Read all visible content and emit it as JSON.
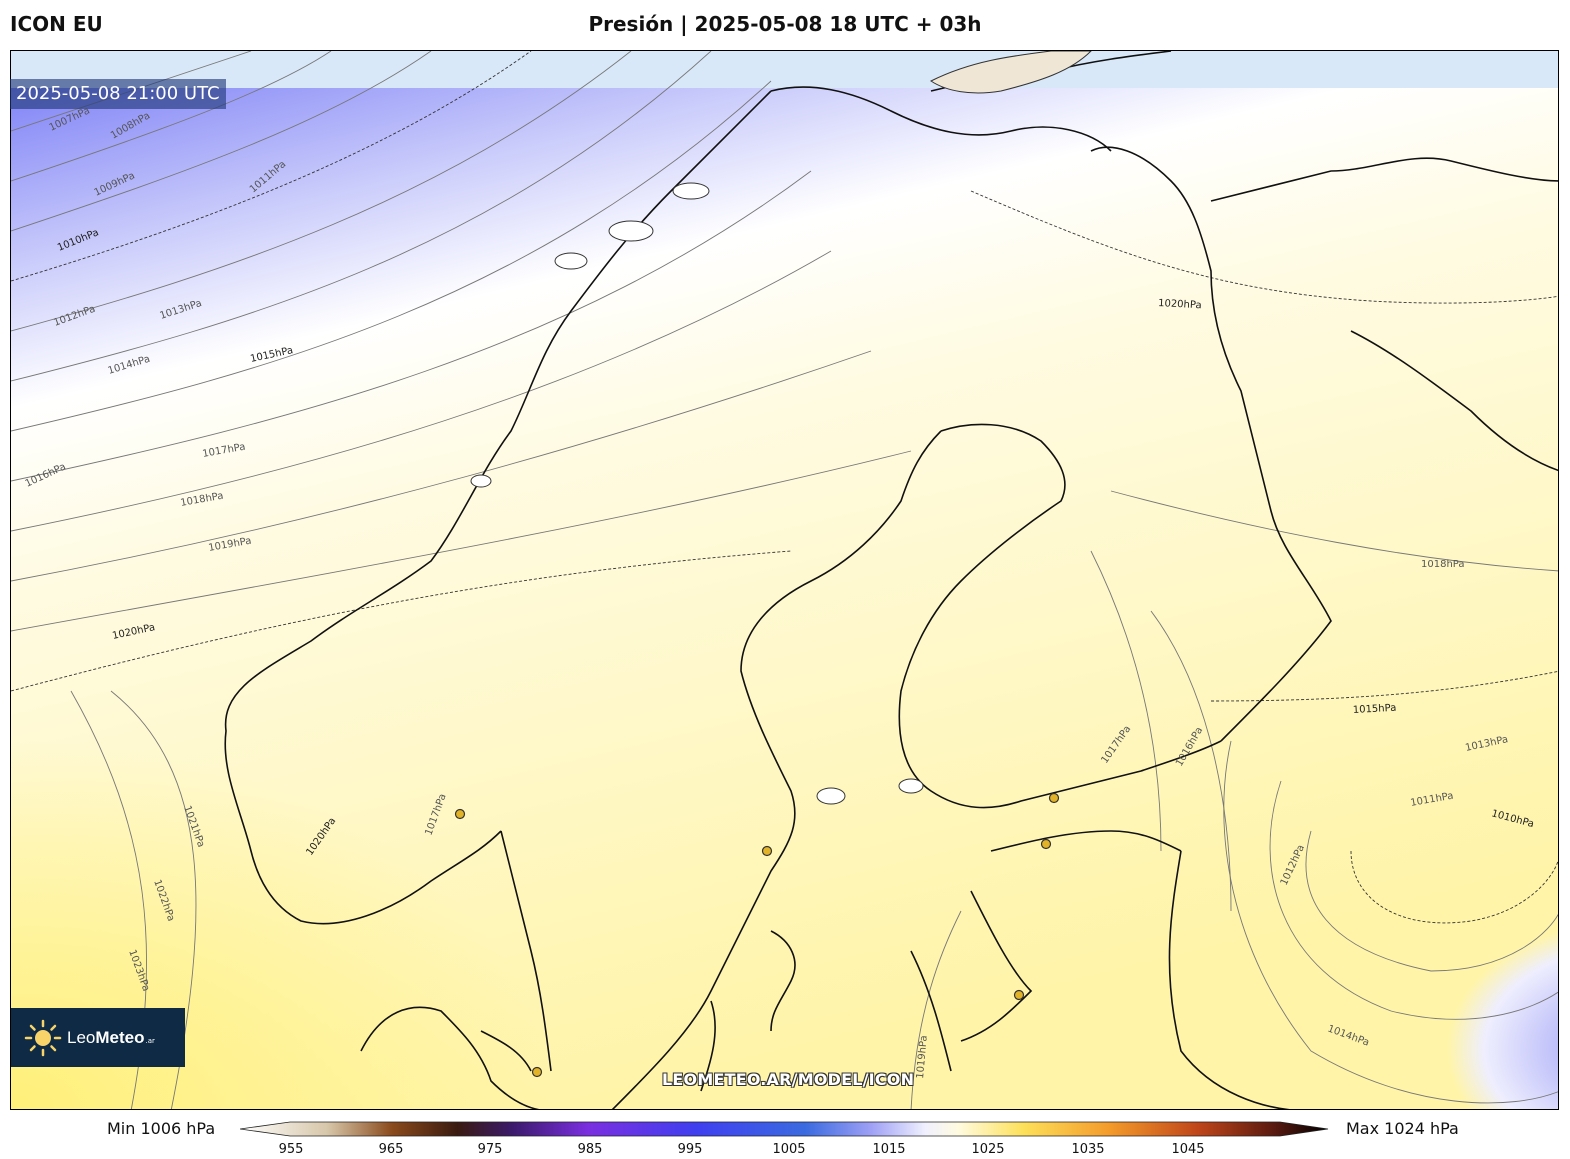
{
  "header": {
    "model": "ICON EU",
    "title": "Presión | 2025-05-08 18 UTC + 03h"
  },
  "map": {
    "valid_time": "2025-05-08 21:00 UTC",
    "watermark": "LEOMETEO.AR/MODEL/ICON",
    "logo": {
      "prefix": "Leo",
      "bold": "Meteo",
      "suffix": ".ar"
    },
    "isobars": [
      "1007hPa",
      "1008hPa",
      "1009hPa",
      "1010hPa",
      "1011hPa",
      "1012hPa",
      "1013hPa",
      "1014hPa",
      "1015hPa",
      "1016hPa",
      "1017hPa",
      "1018hPa",
      "1019hPa",
      "1020hPa",
      "1021hPa",
      "1022hPa",
      "1023hPa",
      "1020hPa",
      "1018hPa",
      "1017hPa",
      "1016hPa",
      "1015hPa",
      "1013hPa",
      "1011hPa",
      "1010hPa",
      "1012hPa",
      "1014hPa",
      "1019hPa",
      "1017hPa",
      "1020hPa"
    ],
    "colors": {
      "low": "#6f72f5",
      "mid_low": "#c8c9fb",
      "neutral": "#ffffff",
      "high": "#fff6b8",
      "very_high": "#fff07a",
      "sea_ice": "#d8e8f8",
      "land_ice": "#efe6d6"
    }
  },
  "colorbar": {
    "min_label": "Min 1006 hPa",
    "max_label": "Max 1024 hPa",
    "ticks": [
      "955",
      "965",
      "975",
      "985",
      "995",
      "1005",
      "1015",
      "1025",
      "1035",
      "1045"
    ]
  }
}
